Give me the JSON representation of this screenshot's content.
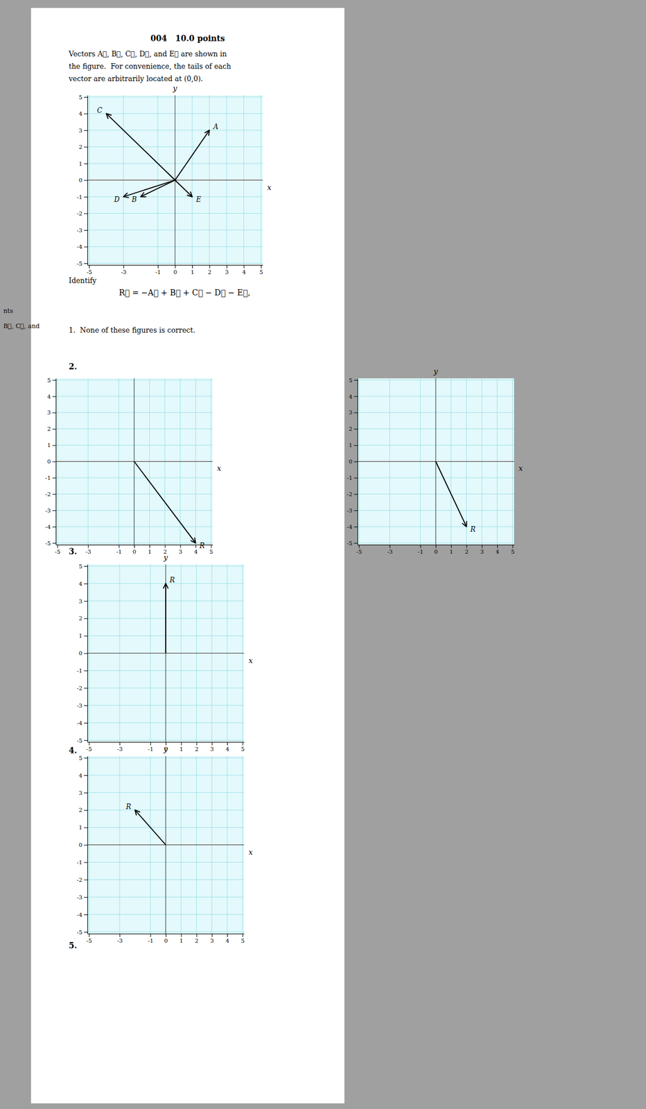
{
  "chart_data": [
    {
      "type": "vector",
      "title": "004   10.0 points",
      "annotations": [
        "Vectors A⃗, B⃗, C⃗, D⃗, and E⃗ are shown in",
        "the figure.  For convenience, the tails of each",
        "vector are arbitrarily located at (0,0).",
        "Identify",
        "R⃗ = −A⃗ + B⃗ + C⃗ − D⃗ − E⃗,",
        "nts",
        "B⃗, C⃗, and",
        "1.  None of these figures is correct."
      ],
      "xlabel": "x",
      "ylabel": "y",
      "categories": [
        "A",
        "B",
        "C",
        "D",
        "E"
      ],
      "x": [
        2,
        -2,
        -4,
        -3,
        1
      ],
      "values": [
        3,
        -1,
        4,
        -1,
        -1
      ],
      "color": "#000000",
      "xlim": [
        -5.1,
        5.1
      ],
      "ylim": [
        -5.1,
        5.1
      ],
      "xticks": [
        -5,
        -3,
        -1,
        0,
        1,
        2,
        3,
        4,
        5
      ],
      "yticks": [
        -5,
        -4,
        -3,
        -2,
        -1,
        0,
        1,
        2,
        3,
        4,
        5
      ],
      "grid": true
    },
    {
      "type": "vector",
      "annotations": [
        "2."
      ],
      "xlabel": "x",
      "categories": [
        "R"
      ],
      "x": [
        4
      ],
      "values": [
        -5
      ],
      "color": "#000000",
      "xlim": [
        -5.1,
        5.1
      ],
      "ylim": [
        -5.1,
        5.1
      ],
      "xticks": [
        -5,
        -3,
        -1,
        0,
        1,
        2,
        3,
        4,
        5
      ],
      "yticks": [
        -5,
        -4,
        -3,
        -2,
        -1,
        0,
        1,
        2,
        3,
        4,
        5
      ],
      "grid": true
    },
    {
      "type": "vector",
      "xlabel": "x",
      "ylabel": "y",
      "categories": [
        "R"
      ],
      "x": [
        2
      ],
      "values": [
        -4
      ],
      "color": "#000000",
      "xlim": [
        -5.1,
        5.1
      ],
      "ylim": [
        -5.1,
        5.1
      ],
      "xticks": [
        -5,
        -3,
        -1,
        0,
        1,
        2,
        3,
        4,
        5
      ],
      "yticks": [
        -5,
        -4,
        -3,
        -2,
        -1,
        0,
        1,
        2,
        3,
        4,
        5
      ],
      "grid": true
    },
    {
      "type": "vector",
      "annotations": [
        "3."
      ],
      "xlabel": "x",
      "ylabel": "y",
      "categories": [
        "R"
      ],
      "x": [
        0
      ],
      "values": [
        4
      ],
      "color": "#000000",
      "xlim": [
        -5.1,
        5.1
      ],
      "ylim": [
        -5.1,
        5.1
      ],
      "xticks": [
        -5,
        -3,
        -1,
        0,
        1,
        2,
        3,
        4,
        5
      ],
      "yticks": [
        -5,
        -4,
        -3,
        -2,
        -1,
        0,
        1,
        2,
        3,
        4,
        5
      ],
      "grid": true
    },
    {
      "type": "vector",
      "annotations": [
        "4.",
        "5."
      ],
      "xlabel": "x",
      "ylabel": "y",
      "categories": [
        "R"
      ],
      "x": [
        -2
      ],
      "values": [
        2
      ],
      "color": "#000000",
      "xlim": [
        -5.1,
        5.1
      ],
      "ylim": [
        -5.1,
        5.1
      ],
      "xticks": [
        -5,
        -3,
        -1,
        0,
        1,
        2,
        3,
        4,
        5
      ],
      "yticks": [
        -5,
        -4,
        -3,
        -2,
        -1,
        0,
        1,
        2,
        3,
        4,
        5
      ],
      "grid": true
    }
  ]
}
